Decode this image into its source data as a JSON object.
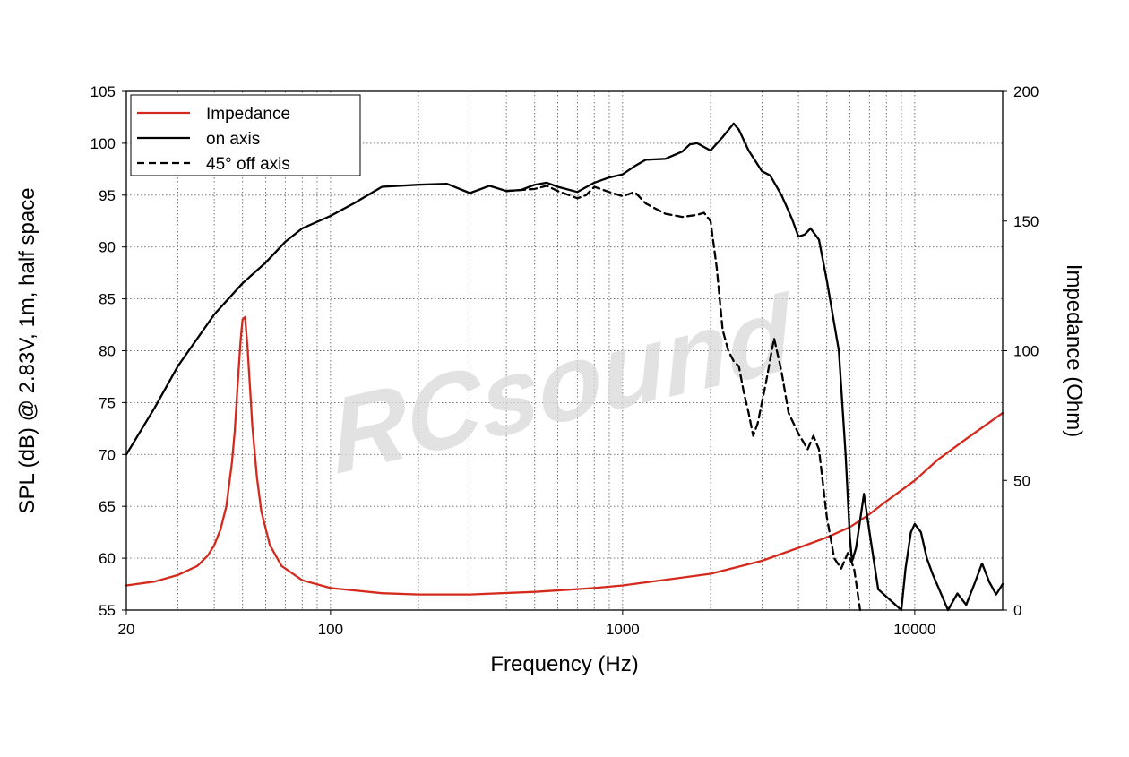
{
  "chart_data": {
    "type": "line",
    "x_scale": "log",
    "xlim": [
      20,
      20000
    ],
    "ylim_left": [
      55,
      105
    ],
    "ylim_right": [
      0,
      200
    ],
    "grid": true,
    "legend_position": "top-left",
    "xlabel": "Frequency (Hz)",
    "ylabel_left": "SPL (dB) @ 2.83V, 1m, half space",
    "ylabel_right": "Impedance (Ohm)",
    "x_ticks": [
      "20",
      "100",
      "1000",
      "10000"
    ],
    "x_tick_values": [
      20,
      100,
      1000,
      10000
    ],
    "y_left_ticks": [
      "55",
      "60",
      "65",
      "70",
      "75",
      "80",
      "85",
      "90",
      "95",
      "100",
      "105"
    ],
    "y_left_tick_values": [
      55,
      60,
      65,
      70,
      75,
      80,
      85,
      90,
      95,
      100,
      105
    ],
    "y_right_ticks": [
      "0",
      "50",
      "100",
      "150",
      "200"
    ],
    "y_right_tick_values": [
      0,
      50,
      100,
      150,
      200
    ],
    "watermark": "RCsound",
    "series": [
      {
        "name": "Impedance",
        "axis": "right",
        "color": "#d42a1e",
        "dash": "solid",
        "points": [
          [
            20,
            9.5
          ],
          [
            25,
            11
          ],
          [
            30,
            13.5
          ],
          [
            35,
            17
          ],
          [
            38,
            21
          ],
          [
            40,
            25
          ],
          [
            42,
            31
          ],
          [
            44,
            40
          ],
          [
            46,
            57
          ],
          [
            47,
            69
          ],
          [
            48,
            85
          ],
          [
            49,
            101
          ],
          [
            49.5,
            107
          ],
          [
            50,
            112
          ],
          [
            51,
            113
          ],
          [
            52,
            101
          ],
          [
            53,
            86
          ],
          [
            54,
            71
          ],
          [
            56,
            51
          ],
          [
            58,
            38
          ],
          [
            62,
            25
          ],
          [
            68,
            17
          ],
          [
            80,
            11.5
          ],
          [
            100,
            8.5
          ],
          [
            150,
            6.5
          ],
          [
            200,
            6
          ],
          [
            300,
            6
          ],
          [
            500,
            7
          ],
          [
            800,
            8.5
          ],
          [
            1000,
            9.5
          ],
          [
            2000,
            14
          ],
          [
            3000,
            19
          ],
          [
            4000,
            24
          ],
          [
            5000,
            28
          ],
          [
            6000,
            32
          ],
          [
            7000,
            37
          ],
          [
            8000,
            42
          ],
          [
            10000,
            50
          ],
          [
            12000,
            58
          ],
          [
            15000,
            66
          ],
          [
            20000,
            76
          ]
        ]
      },
      {
        "name": "on axis",
        "axis": "left",
        "color": "#000000",
        "dash": "solid",
        "points": [
          [
            20,
            70
          ],
          [
            25,
            74.5
          ],
          [
            30,
            78.5
          ],
          [
            40,
            83.5
          ],
          [
            50,
            86.5
          ],
          [
            60,
            88.5
          ],
          [
            70,
            90.5
          ],
          [
            80,
            91.8
          ],
          [
            100,
            93
          ],
          [
            120,
            94.2
          ],
          [
            150,
            95.8
          ],
          [
            200,
            96
          ],
          [
            250,
            96.1
          ],
          [
            300,
            95.2
          ],
          [
            350,
            95.9
          ],
          [
            400,
            95.4
          ],
          [
            450,
            95.5
          ],
          [
            500,
            96
          ],
          [
            550,
            96.2
          ],
          [
            600,
            95.8
          ],
          [
            700,
            95.3
          ],
          [
            800,
            96.2
          ],
          [
            900,
            96.7
          ],
          [
            1000,
            97
          ],
          [
            1100,
            97.8
          ],
          [
            1200,
            98.4
          ],
          [
            1400,
            98.5
          ],
          [
            1600,
            99.2
          ],
          [
            1700,
            99.9
          ],
          [
            1800,
            100
          ],
          [
            2000,
            99.3
          ],
          [
            2200,
            100.6
          ],
          [
            2400,
            101.9
          ],
          [
            2500,
            101.3
          ],
          [
            2700,
            99.3
          ],
          [
            3000,
            97.3
          ],
          [
            3200,
            96.9
          ],
          [
            3500,
            95
          ],
          [
            3800,
            92.7
          ],
          [
            4000,
            91
          ],
          [
            4200,
            91.2
          ],
          [
            4400,
            91.8
          ],
          [
            4700,
            90.7
          ],
          [
            5000,
            86.8
          ],
          [
            5500,
            80
          ],
          [
            5800,
            70
          ],
          [
            6000,
            62
          ],
          [
            6100,
            59.7
          ],
          [
            6300,
            61
          ],
          [
            6700,
            66.2
          ],
          [
            7000,
            62.5
          ],
          [
            7500,
            57
          ],
          [
            8000,
            53
          ],
          [
            9000,
            55
          ],
          [
            9300,
            59
          ],
          [
            9700,
            62.5
          ],
          [
            10000,
            63.3
          ],
          [
            10500,
            62.5
          ],
          [
            11000,
            60
          ],
          [
            11500,
            58.5
          ],
          [
            12000,
            57.3
          ],
          [
            13000,
            55
          ],
          [
            14000,
            56.6
          ],
          [
            15000,
            55.5
          ],
          [
            16000,
            57.5
          ],
          [
            17000,
            59.5
          ],
          [
            18000,
            57.7
          ],
          [
            19000,
            56.5
          ],
          [
            20000,
            57.5
          ]
        ]
      },
      {
        "name": "45° off axis",
        "axis": "left",
        "color": "#000000",
        "dash": "dashed",
        "points": [
          [
            400,
            95.4
          ],
          [
            500,
            95.6
          ],
          [
            550,
            95.9
          ],
          [
            600,
            95.4
          ],
          [
            700,
            94.7
          ],
          [
            750,
            95
          ],
          [
            800,
            95.8
          ],
          [
            900,
            95.3
          ],
          [
            1000,
            94.9
          ],
          [
            1100,
            95.3
          ],
          [
            1200,
            94.2
          ],
          [
            1400,
            93.2
          ],
          [
            1600,
            92.9
          ],
          [
            1800,
            93.1
          ],
          [
            1900,
            93.3
          ],
          [
            2000,
            92.5
          ],
          [
            2100,
            88
          ],
          [
            2200,
            82
          ],
          [
            2300,
            80
          ],
          [
            2400,
            79
          ],
          [
            2500,
            78.5
          ],
          [
            2600,
            76
          ],
          [
            2700,
            74
          ],
          [
            2800,
            71.8
          ],
          [
            2900,
            73
          ],
          [
            3100,
            77
          ],
          [
            3300,
            81.2
          ],
          [
            3500,
            78
          ],
          [
            3700,
            74
          ],
          [
            4000,
            72
          ],
          [
            4300,
            70.5
          ],
          [
            4500,
            71.8
          ],
          [
            4700,
            70.5
          ],
          [
            5000,
            64
          ],
          [
            5300,
            60
          ],
          [
            5600,
            59
          ],
          [
            5900,
            60.5
          ],
          [
            6200,
            59
          ],
          [
            6500,
            55
          ]
        ]
      }
    ]
  }
}
